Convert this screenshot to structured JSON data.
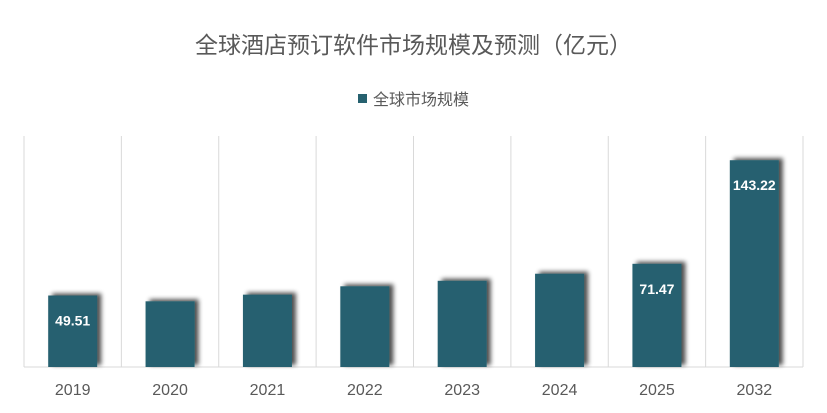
{
  "chart_data": {
    "type": "bar",
    "title": "全球酒店预订软件市场规模及预测（亿元）",
    "categories": [
      "2019",
      "2020",
      "2021",
      "2022",
      "2023",
      "2024",
      "2025",
      "2032"
    ],
    "series": [
      {
        "name": "全球市场规模",
        "values": [
          49.51,
          45.5,
          50.1,
          55.9,
          59.7,
          64.6,
          71.47,
          143.22
        ],
        "color": "#26616f"
      }
    ],
    "data_labels": [
      "49.51",
      "",
      "",
      "",
      "",
      "",
      "71.47",
      "143.22"
    ],
    "legend_position": "top",
    "grid": "vertical",
    "ylim": [
      0,
      160
    ]
  }
}
